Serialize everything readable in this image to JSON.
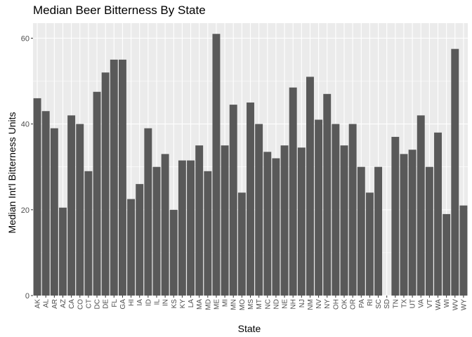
{
  "chart_data": {
    "type": "bar",
    "title": "Median Beer Bitterness By State",
    "xlabel": "State",
    "ylabel": "Median Int'l Bitterness Units",
    "ylim": [
      0,
      63.5
    ],
    "yticks": [
      0,
      20,
      40,
      60
    ],
    "grid": true,
    "categories": [
      "AK",
      "AL",
      "AR",
      "AZ",
      "CA",
      "CO",
      "CT",
      "DC",
      "DE",
      "FL",
      "GA",
      "HI",
      "IA",
      "ID",
      "IL",
      "IN",
      "KS",
      "KY",
      "LA",
      "MA",
      "MD",
      "ME",
      "MI",
      "MN",
      "MO",
      "MS",
      "MT",
      "NC",
      "ND",
      "NE",
      "NH",
      "NJ",
      "NM",
      "NV",
      "NY",
      "OH",
      "OK",
      "OR",
      "PA",
      "RI",
      "SC",
      "SD",
      "TN",
      "TX",
      "UT",
      "VA",
      "VT",
      "WA",
      "WI",
      "WV",
      "WY"
    ],
    "values": [
      46,
      43,
      39,
      20.5,
      42,
      40,
      29,
      47.5,
      52,
      55,
      55,
      22.5,
      26,
      39,
      30,
      33,
      20,
      31.5,
      31.5,
      35,
      29,
      61,
      35,
      44.5,
      24,
      45,
      40,
      33.5,
      32,
      35,
      48.5,
      34.5,
      51,
      41,
      47,
      40,
      35,
      40,
      30,
      24,
      30,
      null,
      37,
      33,
      34,
      42,
      30,
      38,
      19,
      57.5,
      21
    ]
  }
}
